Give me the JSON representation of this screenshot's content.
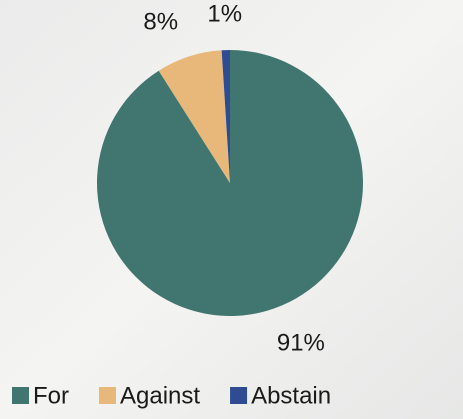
{
  "chart_data": {
    "type": "pie",
    "categories": [
      "For",
      "Against",
      "Abstain"
    ],
    "values": [
      91,
      8,
      1
    ],
    "value_labels": [
      "91%",
      "8%",
      "1%"
    ],
    "colors": [
      "#41756f",
      "#e8b87a",
      "#2f4c93"
    ],
    "legend": "bottom"
  }
}
